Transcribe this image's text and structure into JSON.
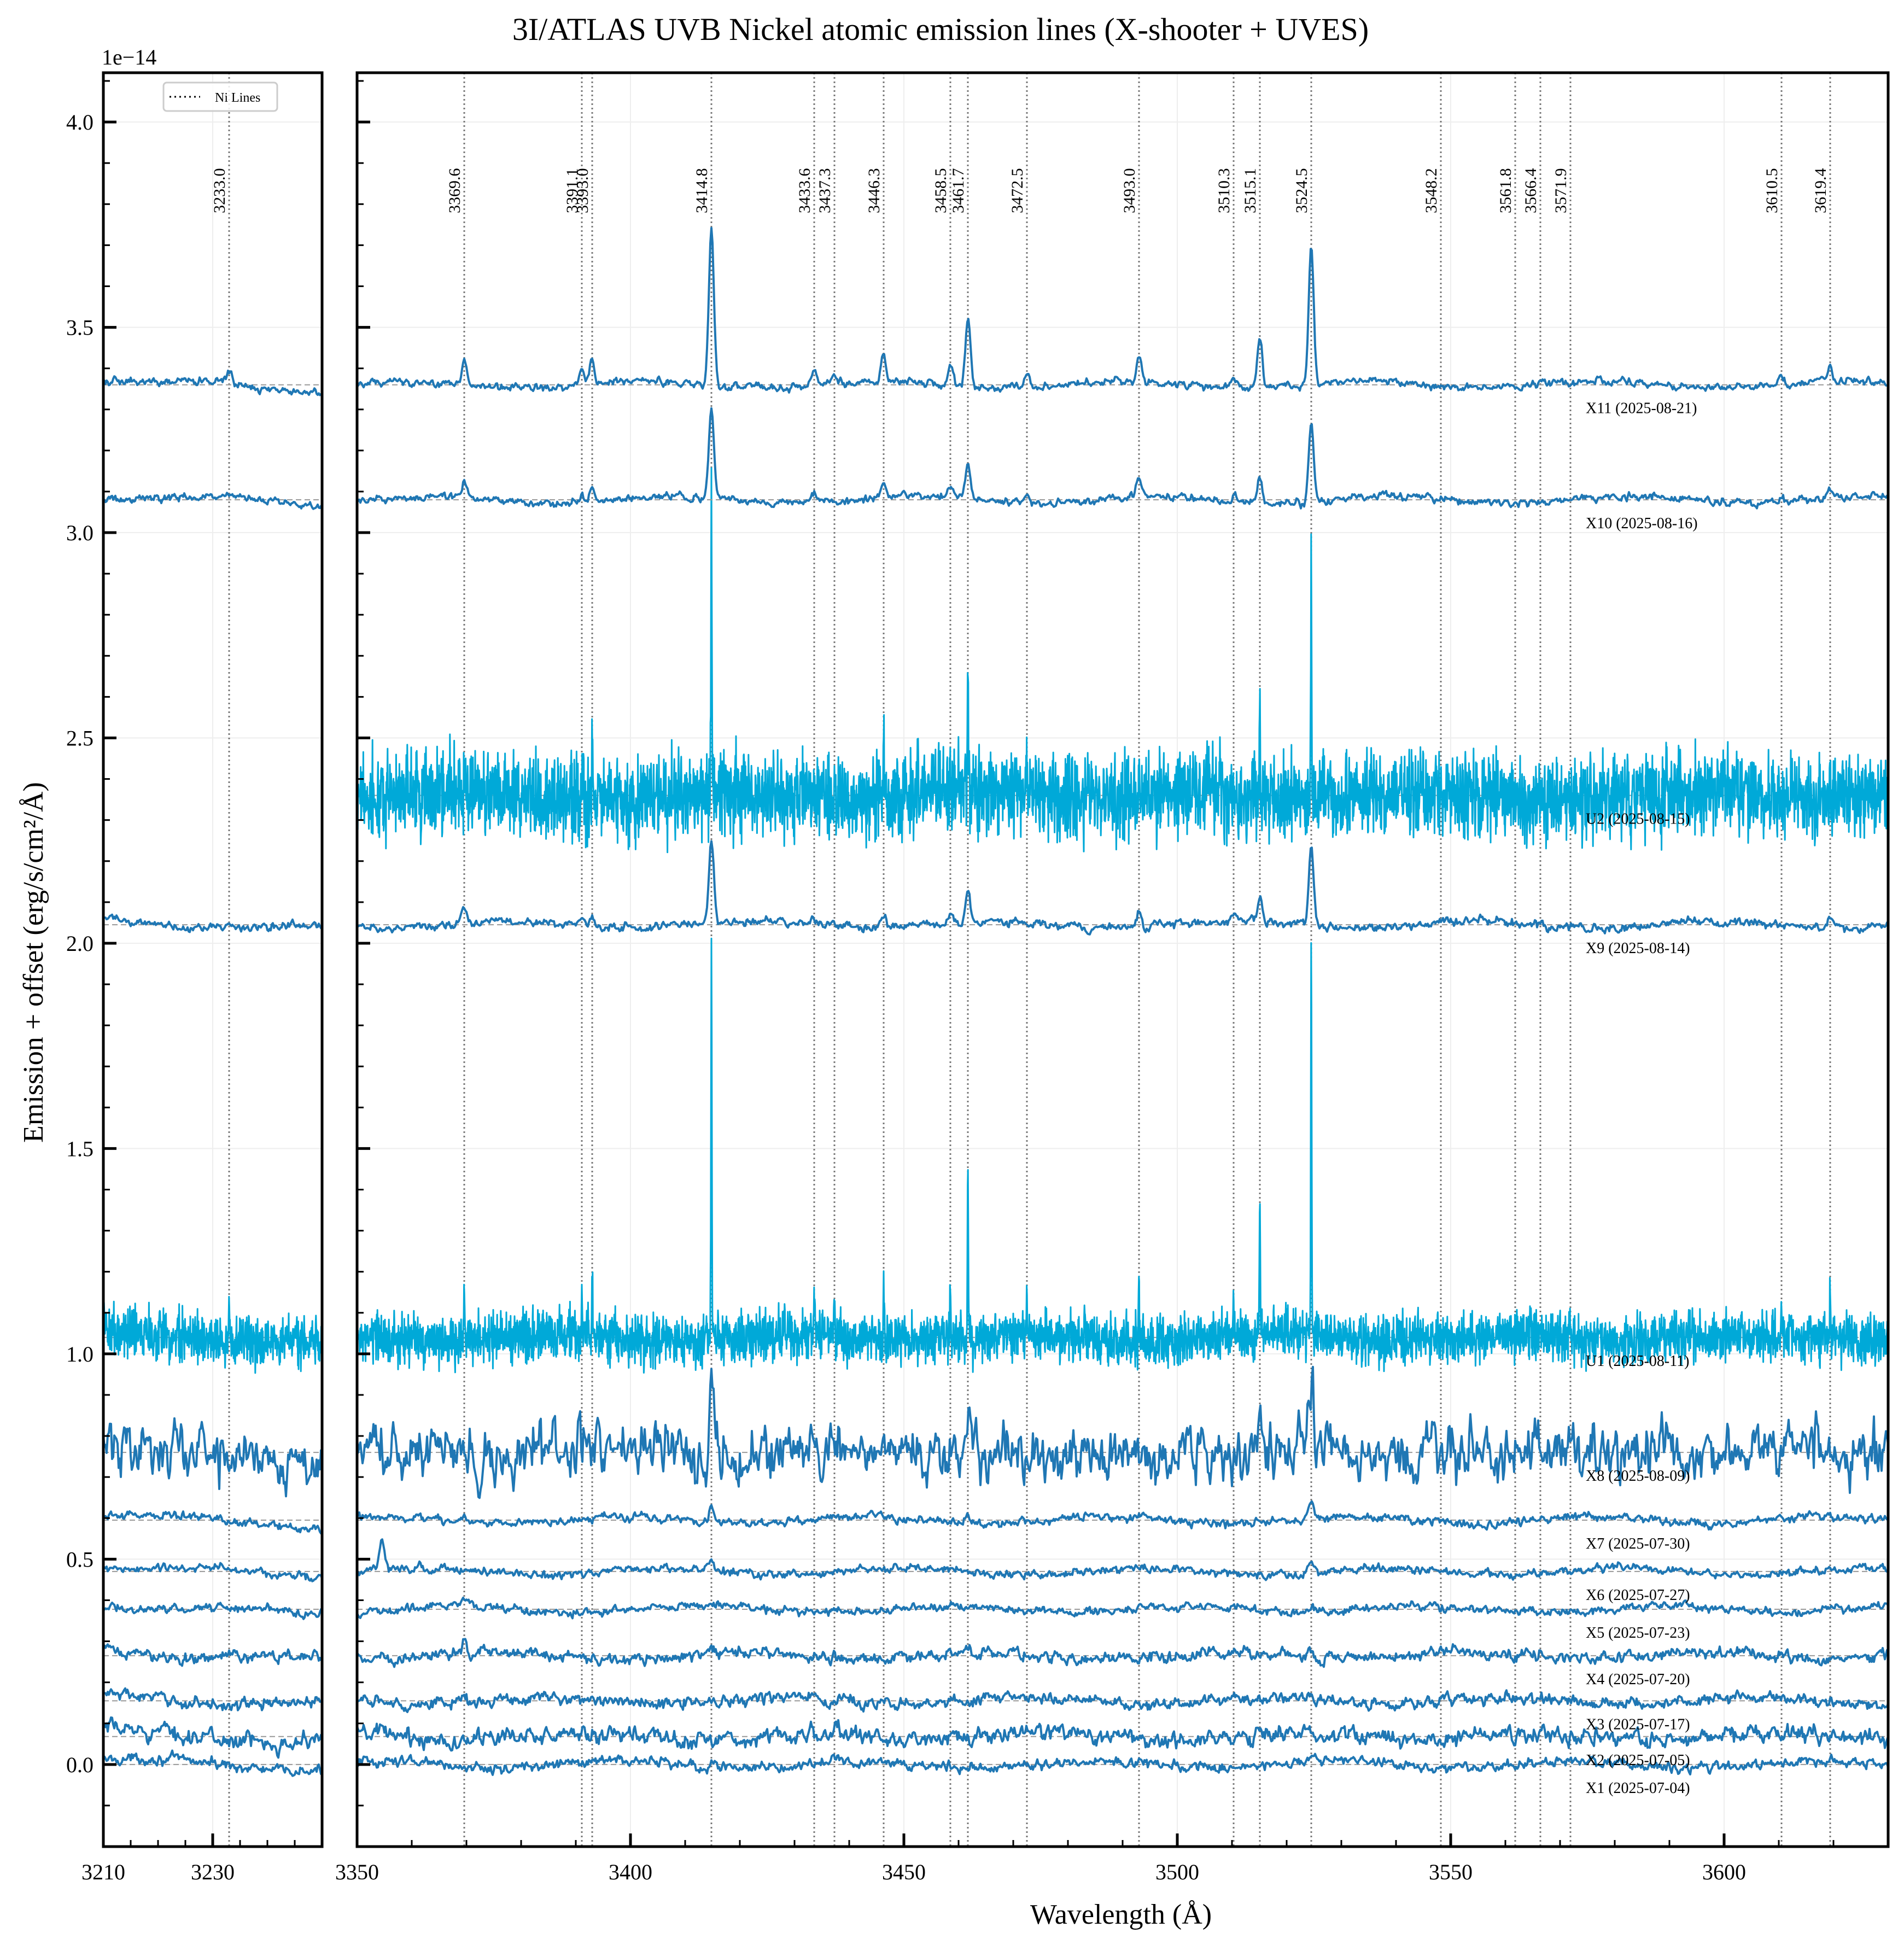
{
  "chart_data": {
    "type": "line",
    "title": "3I/ATLAS UVB Nickel atomic emission lines (X-shooter + UVES)",
    "xlabel": "Wavelength (Å)",
    "ylabel": "Emission + offset (erg/s/cm²/Å)",
    "y_scale_label": "1e−14",
    "ylim": [
      -0.2,
      4.12
    ],
    "y_ticks": [
      "0.0",
      "0.5",
      "1.0",
      "1.5",
      "2.0",
      "2.5",
      "3.0",
      "3.5",
      "4.0"
    ],
    "y_tick_values": [
      0.0,
      0.5,
      1.0,
      1.5,
      2.0,
      2.5,
      3.0,
      3.5,
      4.0
    ],
    "grid": true,
    "legend": {
      "position": "upper left (left panel)",
      "entries": [
        {
          "label": "Ni Lines",
          "style": "dotted"
        }
      ]
    },
    "panels": [
      {
        "name": "left",
        "xlim": [
          3210,
          3250
        ],
        "x_ticks": [
          "3210",
          "3230"
        ],
        "x_tick_values": [
          3210,
          3230
        ]
      },
      {
        "name": "main",
        "xlim": [
          3350,
          3630
        ],
        "x_ticks": [
          "3350",
          "3400",
          "3450",
          "3500",
          "3550",
          "3600"
        ],
        "x_tick_values": [
          3350,
          3400,
          3450,
          3500,
          3550,
          3600
        ]
      }
    ],
    "ni_lines": [
      3233.0,
      3369.6,
      3391.1,
      3393.0,
      3414.8,
      3433.6,
      3437.3,
      3446.3,
      3458.5,
      3461.7,
      3472.5,
      3493.0,
      3510.3,
      3515.1,
      3524.5,
      3548.2,
      3561.8,
      3566.4,
      3571.9,
      3610.5,
      3619.4
    ],
    "ni_line_labels": [
      "3233.0",
      "3369.6",
      "3391.1",
      "3393.0",
      "3414.8",
      "3433.6",
      "3437.3",
      "3446.3",
      "3458.5",
      "3461.7",
      "3472.5",
      "3493.0",
      "3510.3",
      "3515.1",
      "3524.5",
      "3548.2",
      "3561.8",
      "3566.4",
      "3571.9",
      "3610.5",
      "3619.4"
    ],
    "series": [
      {
        "name": "X1 (2025-07-04)",
        "instrument": "X-shooter",
        "offset": 0.0,
        "noise": 0.012,
        "color": "#1f77b4",
        "peaks": {
          "3414.8": 0.01,
          "3524.5": 0.01
        }
      },
      {
        "name": "X2 (2025-07-05)",
        "instrument": "X-shooter",
        "offset": 0.068,
        "noise": 0.02,
        "color": "#1f77b4",
        "peaks": {
          "3414.8": 0.01,
          "3524.5": 0.01
        }
      },
      {
        "name": "X3 (2025-07-17)",
        "instrument": "X-shooter",
        "offset": 0.155,
        "noise": 0.014,
        "color": "#1f77b4",
        "peaks": {
          "3414.8": 0.01,
          "3524.5": 0.01,
          "3369.6": 0.02
        }
      },
      {
        "name": "X4 (2025-07-20)",
        "instrument": "X-shooter",
        "offset": 0.265,
        "noise": 0.014,
        "color": "#1f77b4",
        "peaks": {
          "3369.6": 0.025,
          "3414.8": 0.01,
          "3524.5": 0.01
        }
      },
      {
        "name": "X5 (2025-07-23)",
        "instrument": "X-shooter",
        "offset": 0.378,
        "noise": 0.01,
        "color": "#1f77b4",
        "peaks": {
          "3369.6": 0.015,
          "3414.8": 0.01,
          "3524.5": 0.012
        }
      },
      {
        "name": "X6 (2025-07-27)",
        "instrument": "X-shooter",
        "offset": 0.47,
        "noise": 0.01,
        "color": "#1f77b4",
        "peaks": {
          "3354.5": 0.07,
          "3414.8": 0.029,
          "3524.5": 0.028
        }
      },
      {
        "name": "X7 (2025-07-30)",
        "instrument": "X-shooter",
        "offset": 0.595,
        "noise": 0.01,
        "color": "#1f77b4",
        "peaks": {
          "3369.6": 0.015,
          "3414.8": 0.04,
          "3461.7": 0.015,
          "3524.5": 0.038
        }
      },
      {
        "name": "X8 (2025-08-09)",
        "instrument": "X-shooter",
        "offset": 0.76,
        "noise": 0.065,
        "color": "#1f77b4",
        "peaks": {
          "3414.8": 0.196,
          "3461.7": 0.12,
          "3524.5": 0.177,
          "3515.1": 0.08
        }
      },
      {
        "name": "U1 (2025-08-11)",
        "instrument": "UVES",
        "offset": 1.04,
        "noise": 0.03,
        "color": "#00a9d8",
        "peaks": {
          "3233.0": 0.13,
          "3369.6": 0.13,
          "3391.1": 0.11,
          "3393.0": 0.17,
          "3414.8": 0.92,
          "3433.6": 0.13,
          "3437.3": 0.07,
          "3446.3": 0.13,
          "3458.5": 0.13,
          "3461.7": 0.43,
          "3472.5": 0.09,
          "3493.0": 0.17,
          "3510.3": 0.06,
          "3515.1": 0.33,
          "3524.5": 0.95,
          "3571.9": 0.05,
          "3610.5": 0.07,
          "3619.4": 0.11
        }
      },
      {
        "name": "X9 (2025-08-14)",
        "instrument": "X-shooter",
        "offset": 2.045,
        "noise": 0.01,
        "color": "#1f77b4",
        "peaks": {
          "3369.6": 0.04,
          "3391.1": 0.02,
          "3393.0": 0.03,
          "3414.8": 0.2,
          "3433.6": 0.02,
          "3446.3": 0.025,
          "3458.5": 0.025,
          "3461.7": 0.085,
          "3493.0": 0.04,
          "3510.3": 0.02,
          "3515.1": 0.065,
          "3524.5": 0.19,
          "3619.4": 0.02
        }
      },
      {
        "name": "U2 (2025-08-15)",
        "instrument": "UVES",
        "offset": 2.36,
        "noise": 0.05,
        "color": "#00a9d8",
        "peaks": {
          "3391.1": 0.08,
          "3393.0": 0.1,
          "3414.8": 0.7,
          "3433.6": 0.08,
          "3446.3": 0.1,
          "3458.5": 0.09,
          "3461.7": 0.3,
          "3472.5": 0.08,
          "3493.0": 0.08,
          "3515.1": 0.195,
          "3524.5": 0.62,
          "3619.4": 0.07
        }
      },
      {
        "name": "X10 (2025-08-16)",
        "instrument": "X-shooter",
        "offset": 3.08,
        "noise": 0.009,
        "color": "#1f77b4",
        "peaks": {
          "3233.0": 0.01,
          "3369.6": 0.04,
          "3391.1": 0.02,
          "3393.0": 0.035,
          "3414.8": 0.215,
          "3433.6": 0.02,
          "3446.3": 0.035,
          "3458.5": 0.025,
          "3461.7": 0.09,
          "3472.5": 0.015,
          "3493.0": 0.04,
          "3510.3": 0.015,
          "3515.1": 0.06,
          "3524.5": 0.196,
          "3610.5": 0.01,
          "3619.4": 0.025
        }
      },
      {
        "name": "X11 (2025-08-21)",
        "instrument": "X-shooter",
        "offset": 3.36,
        "noise": 0.009,
        "color": "#1f77b4",
        "peaks": {
          "3233.0": 0.03,
          "3369.6": 0.06,
          "3391.1": 0.04,
          "3393.0": 0.065,
          "3414.8": 0.38,
          "3433.6": 0.04,
          "3437.3": 0.025,
          "3446.3": 0.068,
          "3458.5": 0.053,
          "3461.7": 0.17,
          "3472.5": 0.037,
          "3493.0": 0.068,
          "3510.3": 0.02,
          "3515.1": 0.116,
          "3524.5": 0.34,
          "3610.5": 0.02,
          "3619.4": 0.045
        }
      }
    ]
  },
  "colors": {
    "xshooter": "#1f77b4",
    "uves": "#00a9d8",
    "ni_line": "#777777",
    "baseline": "#999999",
    "grid": "#eeeeee"
  }
}
